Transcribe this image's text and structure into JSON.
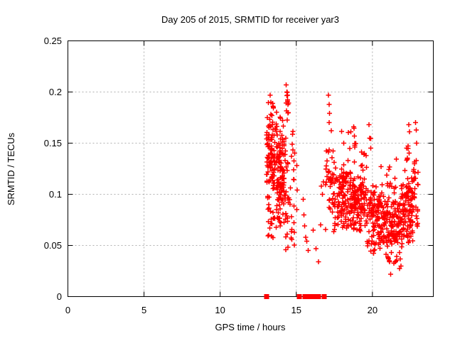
{
  "chart_data": {
    "type": "scatter",
    "title": "Day 205 of 2015, SRMTID for receiver yar3",
    "xlabel": "GPS time / hours",
    "ylabel": "SRMTID / TECUs",
    "xlim": [
      0,
      24
    ],
    "ylim": [
      0,
      0.25
    ],
    "xticks": {
      "values": [
        0,
        5,
        10,
        15,
        20
      ],
      "labels": [
        "0",
        "5",
        "10",
        "15",
        "20"
      ]
    },
    "yticks": {
      "values": [
        0,
        0.05,
        0.1,
        0.15,
        0.2,
        0.25
      ],
      "labels": [
        "0",
        "0.05",
        "0.1",
        "0.15",
        "0.2",
        "0.25"
      ]
    },
    "grid": {
      "x": [
        5,
        10,
        15,
        20
      ],
      "y": [
        0.05,
        0.1,
        0.15,
        0.2
      ]
    },
    "legend": "none",
    "series": [
      {
        "name": "SRMTID",
        "marker": "plus",
        "color": "#ff0000",
        "seed": 42,
        "points": [
          [
            13.28,
            0.197
          ],
          [
            13.32,
            0.19
          ],
          [
            13.5,
            0.185
          ],
          [
            14.33,
            0.207
          ],
          [
            14.37,
            0.2
          ],
          [
            14.42,
            0.197
          ],
          [
            14.45,
            0.188
          ],
          [
            15.03,
            0.128
          ],
          [
            15.05,
            0.104
          ],
          [
            15.04,
            0.085
          ],
          [
            15.45,
            0.095
          ],
          [
            15.5,
            0.08
          ],
          [
            15.55,
            0.069
          ],
          [
            15.62,
            0.058
          ],
          [
            15.7,
            0.054
          ],
          [
            15.78,
            0.045
          ],
          [
            16.1,
            0.065
          ],
          [
            16.3,
            0.047
          ],
          [
            16.45,
            0.034
          ],
          [
            16.6,
            0.07
          ],
          [
            16.65,
            0.108
          ],
          [
            16.72,
            0.1
          ],
          [
            16.78,
            0.112
          ],
          [
            17.12,
            0.197
          ],
          [
            17.15,
            0.188
          ],
          [
            17.18,
            0.179
          ],
          [
            17.16,
            0.17
          ],
          [
            17.3,
            0.162
          ],
          [
            18.78,
            0.166
          ],
          [
            18.82,
            0.157
          ],
          [
            18.85,
            0.148
          ],
          [
            19.78,
            0.168
          ],
          [
            19.83,
            0.155
          ],
          [
            19.9,
            0.145
          ],
          [
            22.4,
            0.168
          ],
          [
            22.43,
            0.161
          ],
          [
            22.84,
            0.17
          ],
          [
            22.87,
            0.163
          ],
          [
            22.9,
            0.15
          ]
        ],
        "clusters": [
          {
            "n": 100,
            "x": [
              13.05,
              13.62
            ],
            "y": [
              0.075,
              0.196
            ],
            "profile": "center"
          },
          {
            "n": 12,
            "x": [
              13.05,
              13.6
            ],
            "y": [
              0.055,
              0.08
            ],
            "profile": "uniform"
          },
          {
            "n": 115,
            "x": [
              13.68,
              14.22
            ],
            "y": [
              0.055,
              0.182
            ],
            "profile": "center"
          },
          {
            "n": 45,
            "x": [
              14.25,
              14.9
            ],
            "y": [
              0.045,
              0.165
            ],
            "profile": "uniform"
          },
          {
            "n": 10,
            "x": [
              14.3,
              14.52
            ],
            "y": [
              0.165,
              0.2
            ],
            "profile": "uniform"
          },
          {
            "n": 35,
            "x": [
              16.92,
              17.45
            ],
            "y": [
              0.06,
              0.155
            ],
            "profile": "center"
          },
          {
            "n": 130,
            "x": [
              17.45,
              18.65
            ],
            "y": [
              0.055,
              0.14
            ],
            "profile": "center"
          },
          {
            "n": 8,
            "x": [
              17.9,
              18.85
            ],
            "y": [
              0.14,
              0.166
            ],
            "profile": "uniform"
          },
          {
            "n": 115,
            "x": [
              18.65,
              19.65
            ],
            "y": [
              0.055,
              0.135
            ],
            "profile": "center"
          },
          {
            "n": 6,
            "x": [
              18.9,
              19.98
            ],
            "y": [
              0.135,
              0.158
            ],
            "profile": "uniform"
          },
          {
            "n": 110,
            "x": [
              19.65,
              20.7
            ],
            "y": [
              0.04,
              0.115
            ],
            "profile": "center"
          },
          {
            "n": 125,
            "x": [
              20.7,
              21.85
            ],
            "y": [
              0.03,
              0.11
            ],
            "profile": "center"
          },
          {
            "n": 12,
            "x": [
              20.8,
              21.9
            ],
            "y": [
              0.022,
              0.04
            ],
            "profile": "uniform"
          },
          {
            "n": 10,
            "x": [
              20.4,
              21.6
            ],
            "y": [
              0.105,
              0.135
            ],
            "profile": "uniform"
          },
          {
            "n": 110,
            "x": [
              21.85,
              22.65
            ],
            "y": [
              0.045,
              0.12
            ],
            "profile": "center"
          },
          {
            "n": 8,
            "x": [
              21.9,
              22.5
            ],
            "y": [
              0.12,
              0.148
            ],
            "profile": "uniform"
          },
          {
            "n": 28,
            "x": [
              22.65,
              23.0
            ],
            "y": [
              0.06,
              0.135
            ],
            "profile": "uniform"
          }
        ]
      }
    ],
    "baseline_markers": {
      "shape": "square",
      "color": "#ff0000",
      "y": 0,
      "x": [
        13.07,
        15.2,
        15.55,
        15.77,
        15.98,
        16.06,
        16.14,
        16.22,
        16.3,
        16.38,
        16.47,
        16.85
      ]
    }
  },
  "colors": {
    "marker": "#ff0000",
    "grid": "#b0b0b0",
    "axis": "#000000",
    "text": "#000000",
    "background": "#ffffff"
  }
}
